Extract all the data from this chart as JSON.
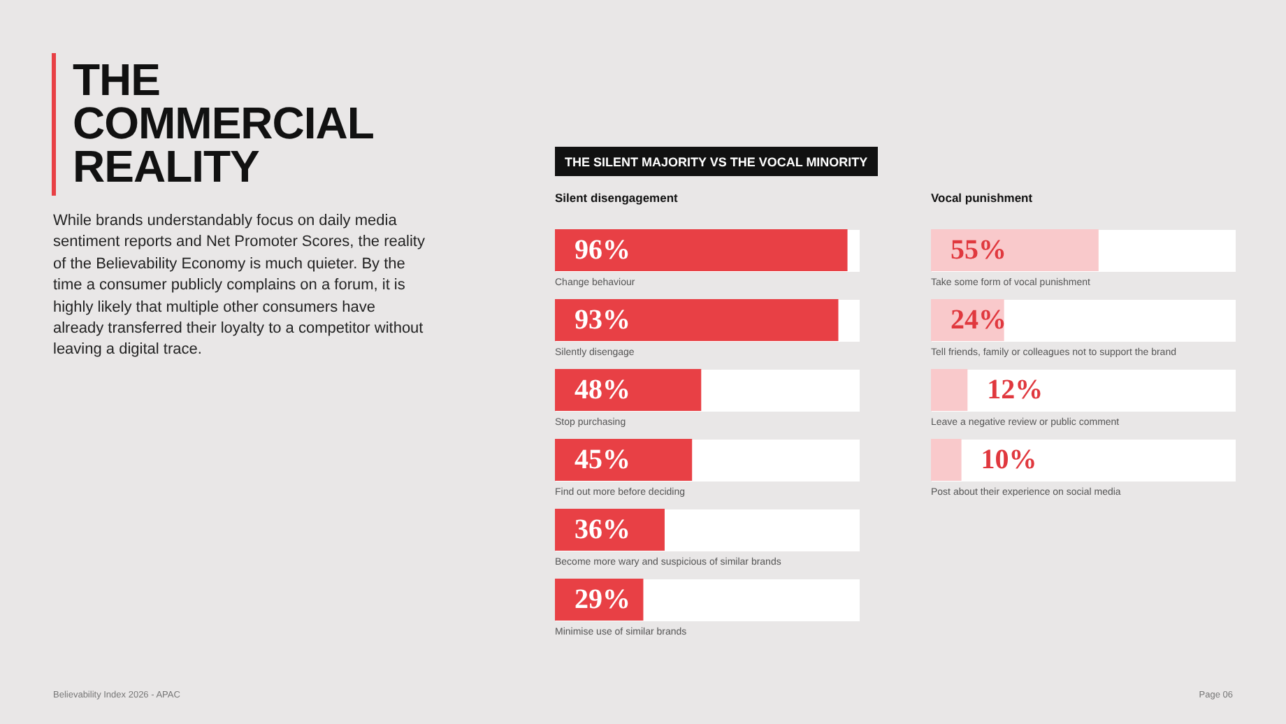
{
  "chart_data": [
    {
      "type": "other",
      "title": "THE COMMERCIAL REALITY",
      "subtitle": "While brands understandably focus on daily media sentiment reports and Net Promoter Scores, the reality of the Believability Economy is much quieter. By the time a consumer publicly complains on a forum, it is highly likely that multiple other consumers have already transferred their loyalty to a competitor without leaving a digital trace.",
      "annotations": [
        "THE SILENT MAJORITY VS THE VOCAL MINORITY",
        "Believability Index 2026 - APAC",
        "Page 06"
      ]
    },
    {
      "type": "bar",
      "orientation": "horizontal",
      "title": "Silent disengagement",
      "categories": [
        "Change behaviour",
        "Silently disengage",
        "Stop purchasing",
        "Find out more before deciding",
        "Become more wary and suspicious of similar brands",
        "Minimise use of similar brands"
      ],
      "values": [
        96,
        93,
        48,
        45,
        36,
        29
      ],
      "value_labels": [
        "96%",
        "93%",
        "48%",
        "45%",
        "36%",
        "29%"
      ],
      "color": "#e84045",
      "xlim": [
        0,
        100
      ],
      "tick_labels": false
    },
    {
      "type": "bar",
      "orientation": "horizontal",
      "title": "Vocal punishment",
      "categories": [
        "Take some form of vocal punishment",
        "Tell friends, family or colleagues not to support the brand",
        "Leave a negative review or public comment",
        "Post about their experience on social media"
      ],
      "values": [
        55,
        24,
        12,
        10
      ],
      "value_labels": [
        "55%",
        "24%",
        "12%",
        "10%"
      ],
      "color": "#f9c9cb",
      "xlim": [
        0,
        100
      ],
      "tick_labels": false
    }
  ]
}
